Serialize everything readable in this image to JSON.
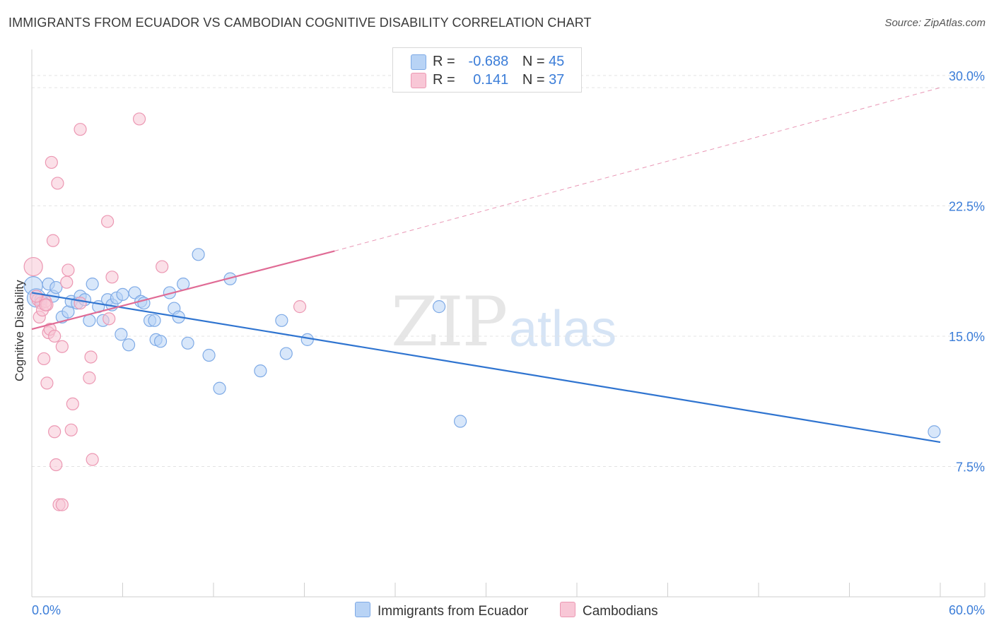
{
  "title": "IMMIGRANTS FROM ECUADOR VS CAMBODIAN COGNITIVE DISABILITY CORRELATION CHART",
  "source": "Source: ZipAtlas.com",
  "watermark": {
    "zip": "ZIP",
    "atlas": "atlas"
  },
  "legend": {
    "r_label": "R =",
    "n_label": "N =",
    "rows": [
      {
        "r": "-0.688",
        "n": "45"
      },
      {
        "r": "0.141",
        "n": "37"
      }
    ]
  },
  "colors": {
    "blue_fill": "#b8d3f5",
    "blue_stroke": "#7eaae6",
    "blue_line": "#2f74d0",
    "pink_fill": "#f8c7d6",
    "pink_stroke": "#ec98b3",
    "pink_line": "#e06b95",
    "tick_label": "#3b7dd8",
    "grid": "#e3e3e3"
  },
  "chart_data": {
    "type": "scatter",
    "title": "IMMIGRANTS FROM ECUADOR VS CAMBODIAN COGNITIVE DISABILITY CORRELATION CHART",
    "xlabel": "",
    "ylabel": "Cognitive Disability",
    "xlim": [
      0,
      60
    ],
    "ylim": [
      0,
      31.5
    ],
    "x_tick_labels": [
      "0.0%",
      "60.0%"
    ],
    "y_ticks": [
      7.5,
      15.0,
      22.5,
      30.0
    ],
    "y_tick_labels": [
      "7.5%",
      "15.0%",
      "22.5%",
      "30.0%"
    ],
    "grid": true,
    "legend_position": "top-center",
    "series": [
      {
        "name": "Immigrants from Ecuador",
        "color": "#7eaae6",
        "points": [
          [
            0.1,
            17.9
          ],
          [
            0.3,
            17.2
          ],
          [
            0.6,
            17.1
          ],
          [
            1.1,
            18.0
          ],
          [
            1.4,
            17.3
          ],
          [
            1.6,
            17.8
          ],
          [
            2.0,
            16.1
          ],
          [
            2.4,
            16.4
          ],
          [
            2.6,
            17.0
          ],
          [
            3.0,
            16.9
          ],
          [
            3.2,
            17.3
          ],
          [
            3.5,
            17.1
          ],
          [
            3.8,
            15.9
          ],
          [
            4.0,
            18.0
          ],
          [
            4.4,
            16.7
          ],
          [
            4.7,
            15.9
          ],
          [
            5.0,
            17.1
          ],
          [
            5.3,
            16.8
          ],
          [
            5.6,
            17.2
          ],
          [
            5.9,
            15.1
          ],
          [
            6.0,
            17.4
          ],
          [
            6.4,
            14.5
          ],
          [
            6.8,
            17.5
          ],
          [
            7.2,
            17.0
          ],
          [
            7.4,
            16.9
          ],
          [
            7.8,
            15.9
          ],
          [
            8.1,
            15.9
          ],
          [
            8.2,
            14.8
          ],
          [
            8.5,
            14.7
          ],
          [
            9.1,
            17.5
          ],
          [
            9.4,
            16.6
          ],
          [
            9.7,
            16.1
          ],
          [
            10.0,
            18.0
          ],
          [
            10.3,
            14.6
          ],
          [
            11.0,
            19.7
          ],
          [
            11.7,
            13.9
          ],
          [
            12.4,
            12.0
          ],
          [
            13.1,
            18.3
          ],
          [
            15.1,
            13.0
          ],
          [
            16.5,
            15.9
          ],
          [
            16.8,
            14.0
          ],
          [
            18.2,
            14.8
          ],
          [
            26.9,
            16.7
          ],
          [
            28.3,
            10.1
          ],
          [
            59.6,
            9.5
          ]
        ],
        "trend": {
          "x": [
            0,
            60
          ],
          "y": [
            17.5,
            8.9
          ],
          "style": "solid"
        }
      },
      {
        "name": "Cambodians",
        "color": "#ec98b3",
        "points": [
          [
            0.1,
            19.0
          ],
          [
            0.4,
            17.1
          ],
          [
            0.5,
            16.1
          ],
          [
            0.6,
            16.9
          ],
          [
            0.7,
            16.5
          ],
          [
            0.8,
            13.7
          ],
          [
            0.9,
            17.0
          ],
          [
            1.0,
            16.8
          ],
          [
            1.0,
            12.3
          ],
          [
            1.1,
            15.2
          ],
          [
            1.2,
            15.4
          ],
          [
            1.3,
            25.0
          ],
          [
            1.4,
            20.5
          ],
          [
            1.5,
            15.0
          ],
          [
            1.5,
            9.5
          ],
          [
            1.6,
            7.6
          ],
          [
            1.7,
            23.8
          ],
          [
            1.8,
            5.3
          ],
          [
            2.0,
            5.3
          ],
          [
            2.0,
            14.4
          ],
          [
            2.3,
            18.1
          ],
          [
            2.4,
            18.8
          ],
          [
            2.6,
            9.6
          ],
          [
            2.7,
            11.1
          ],
          [
            3.2,
            16.9
          ],
          [
            3.2,
            26.9
          ],
          [
            3.8,
            12.6
          ],
          [
            3.9,
            13.8
          ],
          [
            4.0,
            7.9
          ],
          [
            5.0,
            21.6
          ],
          [
            5.3,
            18.4
          ],
          [
            5.1,
            16.0
          ],
          [
            7.1,
            27.5
          ],
          [
            8.6,
            19.0
          ],
          [
            17.7,
            16.7
          ],
          [
            0.3,
            17.3
          ],
          [
            0.9,
            16.8
          ]
        ],
        "trend": {
          "x": [
            0,
            20
          ],
          "y": [
            15.4,
            19.9
          ],
          "style": "solid",
          "extended_x": [
            20,
            60
          ],
          "extended_y": [
            19.9,
            29.3
          ]
        }
      }
    ]
  },
  "bottom_legend": [
    "Immigrants from Ecuador",
    "Cambodians"
  ]
}
